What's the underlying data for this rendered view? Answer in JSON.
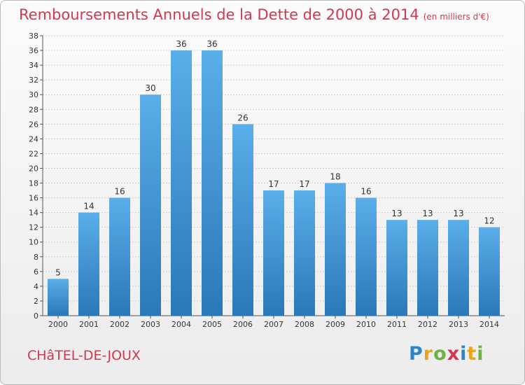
{
  "header": {
    "title": "Remboursements Annuels de la Dette de 2000 à 2014",
    "unit": "(en milliers d'€)"
  },
  "footer": {
    "commune": "CHâTEL-DE-JOUX",
    "logo_letters": [
      "P",
      "r",
      "o",
      "x",
      "i",
      "t",
      "i"
    ]
  },
  "colors": {
    "title": "#d3374f",
    "bar_top": "#5aaee9",
    "bar_bottom": "#2a78b8"
  },
  "chart_data": {
    "type": "bar",
    "title": "Remboursements Annuels de la Dette de 2000 à 2014",
    "xlabel": "",
    "ylabel": "",
    "categories": [
      "2000",
      "2001",
      "2002",
      "2003",
      "2004",
      "2005",
      "2006",
      "2007",
      "2008",
      "2009",
      "2010",
      "2011",
      "2012",
      "2013",
      "2014"
    ],
    "values": [
      5,
      14,
      16,
      30,
      36,
      36,
      26,
      17,
      17,
      18,
      16,
      13,
      13,
      13,
      12
    ],
    "ylim": [
      0,
      38
    ],
    "yticks": [
      0,
      2,
      4,
      6,
      8,
      10,
      12,
      14,
      16,
      18,
      20,
      22,
      24,
      26,
      28,
      30,
      32,
      34,
      36,
      38
    ],
    "grid": true,
    "legend": "none"
  }
}
